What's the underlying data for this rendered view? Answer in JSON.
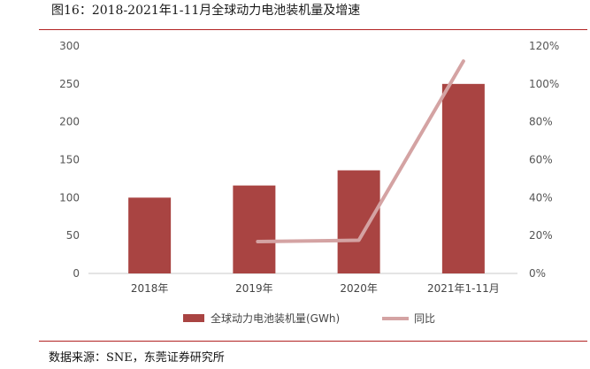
{
  "figure": {
    "title": "图16：2018-2021年1-11月全球动力电池装机量及增速",
    "source": "数据来源：SNE，东莞证券研究所"
  },
  "colors": {
    "bar": "#a94442",
    "line": "#d4a3a3",
    "rule": "#b22222",
    "axis": "#c8c8c8"
  },
  "chart_data": {
    "type": "bar",
    "categories": [
      "2018年",
      "2019年",
      "2020年",
      "2021年1-11月"
    ],
    "series": [
      {
        "name": "全球动力电池装机量(GWh)",
        "type": "bar",
        "axis": "left",
        "values": [
          100,
          116,
          136,
          250
        ]
      },
      {
        "name": "同比",
        "type": "line",
        "axis": "right",
        "values": [
          null,
          16.8,
          17.5,
          112
        ]
      }
    ],
    "y_left": {
      "ylim": [
        0,
        300
      ],
      "ticks": [
        0,
        50,
        100,
        150,
        200,
        250,
        300
      ]
    },
    "y_right": {
      "ylim": [
        0,
        120
      ],
      "ticks": [
        "0%",
        "20%",
        "40%",
        "60%",
        "80%",
        "100%",
        "120%"
      ]
    },
    "grid": false,
    "legend": "bottom"
  }
}
